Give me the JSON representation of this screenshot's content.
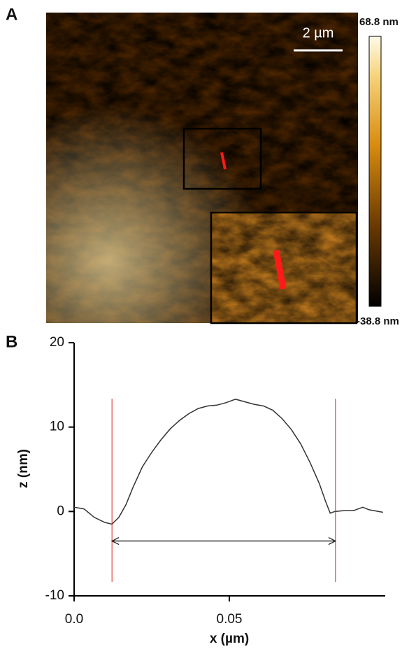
{
  "panels": {
    "a": "A",
    "b": "B"
  },
  "image": {
    "scale_bar": "2 µm",
    "colorbar_max": "68.8 nm",
    "colorbar_min": "-38.8 nm"
  },
  "chart_data": {
    "type": "line",
    "xlabel": "x (µm)",
    "ylabel": "z (nm)",
    "xlim": [
      0,
      0.1
    ],
    "ylim": [
      -10,
      20
    ],
    "xticks": [
      {
        "value": 0,
        "label": "0.0"
      },
      0.05
    ],
    "yticks": [
      -10,
      0,
      10,
      20
    ],
    "series": [
      {
        "color": "#333333",
        "x": [
          0,
          0.0032,
          0.0065,
          0.0099,
          0.0122,
          0.0144,
          0.0167,
          0.0189,
          0.022,
          0.025,
          0.028,
          0.031,
          0.034,
          0.037,
          0.04,
          0.043,
          0.046,
          0.049,
          0.052,
          0.055,
          0.058,
          0.061,
          0.064,
          0.067,
          0.07,
          0.073,
          0.076,
          0.079,
          0.081,
          0.0825,
          0.084,
          0.087,
          0.09,
          0.093,
          0.095,
          0.0995
        ],
        "values": [
          0.5,
          0.3,
          -0.7,
          -1.3,
          -1.5,
          -0.7,
          0.8,
          2.8,
          5.3,
          7,
          8.5,
          9.8,
          10.8,
          11.6,
          12.2,
          12.5,
          12.6,
          12.9,
          13.3,
          13,
          12.7,
          12.5,
          12,
          11,
          9.7,
          8,
          5.8,
          3.3,
          1.2,
          -0.2,
          0,
          0.1,
          0.1,
          0.5,
          0.2,
          -0.1
        ]
      }
    ],
    "vlines": {
      "color": "#e0201b",
      "x": [
        0.0122,
        0.0842
      ]
    },
    "arrow_y": -3.5
  }
}
